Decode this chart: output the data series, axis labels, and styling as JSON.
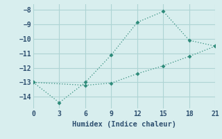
{
  "line1_x": [
    0,
    3,
    6,
    9,
    12,
    15,
    18,
    21
  ],
  "line1_y": [
    -13.0,
    -14.4,
    -13.0,
    -11.1,
    -8.85,
    -8.1,
    -10.1,
    -10.5
  ],
  "line2_x": [
    0,
    6,
    9,
    12,
    15,
    18,
    21
  ],
  "line2_y": [
    -13.0,
    -13.2,
    -13.05,
    -12.4,
    -11.85,
    -11.2,
    -10.5
  ],
  "line_color": "#2e8b7a",
  "bg_color": "#d8eeee",
  "grid_color": "#aed4d4",
  "xlabel": "Humidex (Indice chaleur)",
  "xlim": [
    0,
    21
  ],
  "ylim": [
    -14.8,
    -7.6
  ],
  "xticks": [
    0,
    3,
    6,
    9,
    12,
    15,
    18,
    21
  ],
  "yticks": [
    -8,
    -9,
    -10,
    -11,
    -12,
    -13,
    -14
  ],
  "font_color": "#2e5070",
  "font_family": "monospace",
  "xlabel_fontsize": 7.5,
  "tick_fontsize": 7.0
}
